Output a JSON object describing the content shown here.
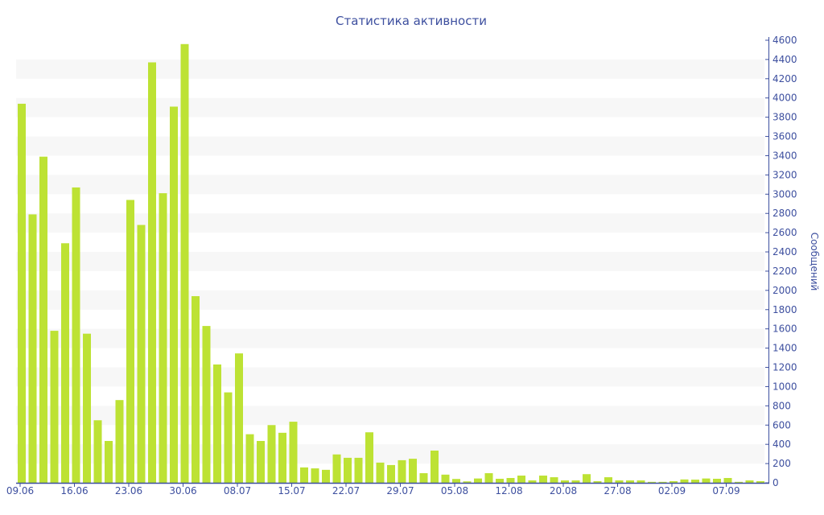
{
  "chart_data": {
    "type": "bar",
    "title": "Статистика активности",
    "xlabel": "",
    "ylabel": "Сообщений",
    "ylim": [
      0,
      4600
    ],
    "ytick_step": 200,
    "grid": "alternating horizontal bands",
    "bar_color": "#bde234",
    "axis_color": "#3d4f9f",
    "x_tick_labels": [
      {
        "bar_index": 0,
        "label": "09.06"
      },
      {
        "bar_index": 5,
        "label": "16.06"
      },
      {
        "bar_index": 10,
        "label": "23.06"
      },
      {
        "bar_index": 15,
        "label": "30.06"
      },
      {
        "bar_index": 20,
        "label": "08.07"
      },
      {
        "bar_index": 25,
        "label": "15.07"
      },
      {
        "bar_index": 30,
        "label": "22.07"
      },
      {
        "bar_index": 35,
        "label": "29.07"
      },
      {
        "bar_index": 40,
        "label": "05.08"
      },
      {
        "bar_index": 45,
        "label": "12.08"
      },
      {
        "bar_index": 50,
        "label": "20.08"
      },
      {
        "bar_index": 55,
        "label": "27.08"
      },
      {
        "bar_index": 60,
        "label": "02.09"
      },
      {
        "bar_index": 65,
        "label": "07.09"
      }
    ],
    "values": [
      3940,
      2790,
      3390,
      1580,
      2490,
      3070,
      1550,
      650,
      435,
      860,
      2940,
      2680,
      4370,
      3010,
      3910,
      4560,
      1940,
      1630,
      1230,
      940,
      1345,
      505,
      435,
      600,
      520,
      635,
      160,
      150,
      135,
      295,
      260,
      260,
      525,
      210,
      185,
      235,
      250,
      100,
      335,
      85,
      40,
      15,
      45,
      100,
      42,
      50,
      75,
      25,
      75,
      58,
      25,
      25,
      90,
      17,
      58,
      25,
      25,
      25,
      10,
      10,
      17,
      35,
      33,
      45,
      42,
      50,
      10,
      25,
      17
    ]
  }
}
